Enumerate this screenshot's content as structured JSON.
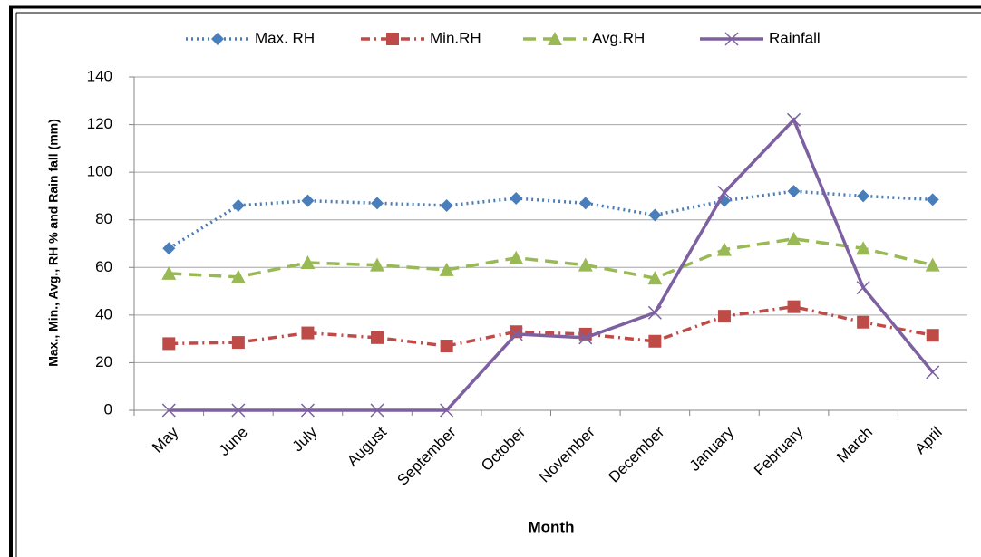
{
  "chart_data": {
    "type": "line",
    "y_label": "Max., Min., Avg., RH % and Rain fall (mm)",
    "x_label": "Month",
    "categories": [
      "May",
      "June",
      "July",
      "August",
      "September",
      "October",
      "November",
      "December",
      "January",
      "February",
      "March",
      "April"
    ],
    "series": [
      {
        "name": "Max. RH",
        "color": "#4a7ebb",
        "line_style": "dotted",
        "marker": "diamond",
        "values": [
          68,
          86,
          88,
          87,
          86,
          89,
          87,
          82,
          88,
          92,
          90,
          88.5
        ]
      },
      {
        "name": "Min.RH",
        "color": "#be4b48",
        "line_style": "dashdot",
        "marker": "square",
        "values": [
          28,
          28.5,
          32.5,
          30.5,
          27,
          33,
          32,
          29,
          39.5,
          43.5,
          37,
          31.5
        ]
      },
      {
        "name": "Avg.RH",
        "color": "#98b954",
        "line_style": "dashed",
        "marker": "triangle",
        "values": [
          57.5,
          56,
          62,
          61,
          59,
          64,
          61,
          55.5,
          67.5,
          72,
          68,
          61
        ]
      },
      {
        "name": "Rainfall",
        "color": "#7d60a0",
        "line_style": "solid",
        "marker": "x",
        "values": [
          0,
          0,
          0,
          0,
          0,
          32,
          30.5,
          41,
          91.5,
          122,
          51.5,
          16
        ]
      }
    ],
    "ylim": [
      0,
      140
    ],
    "yticks": [
      0,
      20,
      40,
      60,
      80,
      100,
      120,
      140
    ],
    "grid": true,
    "legend": "top"
  }
}
